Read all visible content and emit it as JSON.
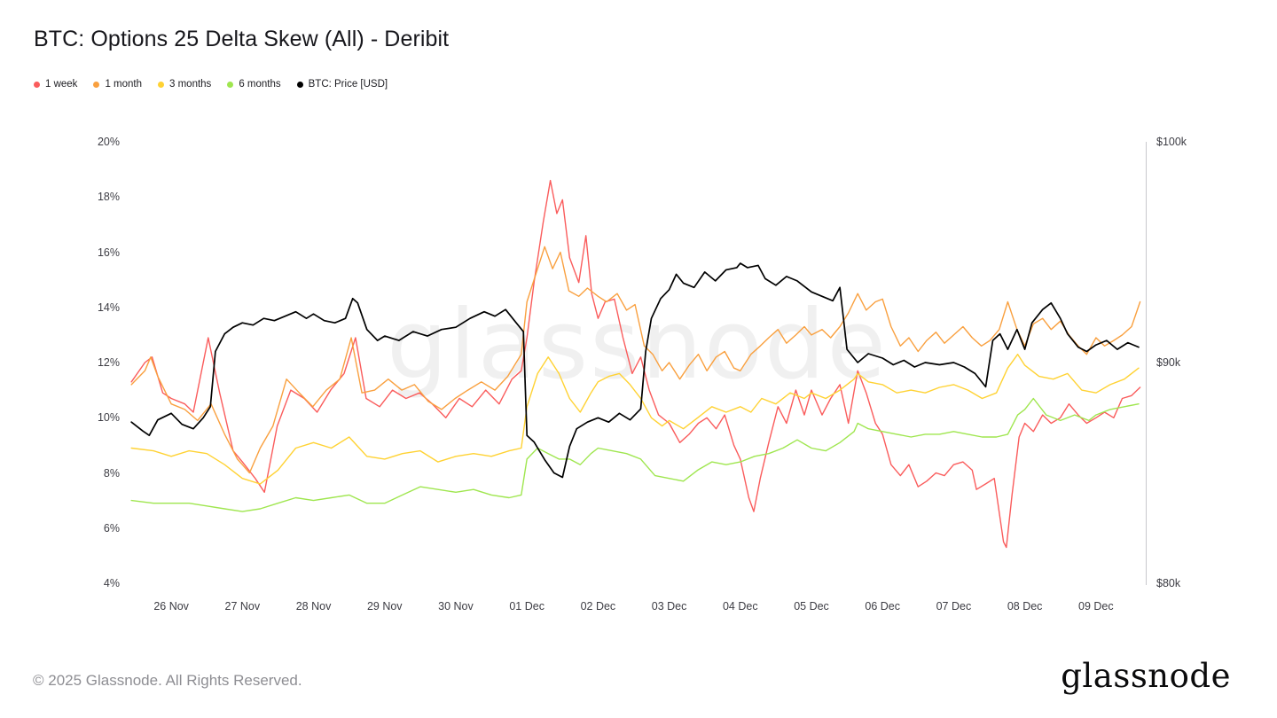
{
  "page": {
    "title": "BTC: Options 25 Delta Skew (All) - Deribit",
    "watermark": "glassnode",
    "footer_copyright": "© 2025 Glassnode. All Rights Reserved.",
    "brand_logo": "glassnode"
  },
  "chart_data": {
    "type": "line",
    "title": "BTC: Options 25 Delta Skew (All) - Deribit",
    "grid": "off",
    "legend_position": "top-left",
    "x_unit": "days (0 = 26 Nov, 13 = 09 Dec)",
    "x_min": -0.6,
    "x_max": 13.7,
    "x_ticks": [
      {
        "pos": 0,
        "label": "26 Nov"
      },
      {
        "pos": 1,
        "label": "27 Nov"
      },
      {
        "pos": 2,
        "label": "28 Nov"
      },
      {
        "pos": 3,
        "label": "29 Nov"
      },
      {
        "pos": 4,
        "label": "30 Nov"
      },
      {
        "pos": 5,
        "label": "01 Dec"
      },
      {
        "pos": 6,
        "label": "02 Dec"
      },
      {
        "pos": 7,
        "label": "03 Dec"
      },
      {
        "pos": 8,
        "label": "04 Dec"
      },
      {
        "pos": 9,
        "label": "05 Dec"
      },
      {
        "pos": 10,
        "label": "06 Dec"
      },
      {
        "pos": 11,
        "label": "07 Dec"
      },
      {
        "pos": 12,
        "label": "08 Dec"
      },
      {
        "pos": 13,
        "label": "09 Dec"
      }
    ],
    "left_axis": {
      "unit": "%",
      "min": 4,
      "max": 20,
      "ticks": [
        {
          "value": 20,
          "label": "20%"
        },
        {
          "value": 18,
          "label": "18%"
        },
        {
          "value": 16,
          "label": "16%"
        },
        {
          "value": 14,
          "label": "14%"
        },
        {
          "value": 12,
          "label": "12%"
        },
        {
          "value": 10,
          "label": "10%"
        },
        {
          "value": 8,
          "label": "8%"
        },
        {
          "value": 6,
          "label": "6%"
        },
        {
          "value": 4,
          "label": "4%"
        }
      ]
    },
    "right_axis": {
      "unit": "USD (thousands)",
      "min": 80,
      "max": 100,
      "ticks": [
        {
          "value": 100,
          "label": "$100k"
        },
        {
          "value": 90,
          "label": "$90k"
        },
        {
          "value": 80,
          "label": "$80k"
        }
      ]
    },
    "series": [
      {
        "id": "1-week",
        "name": "1 week",
        "color": "#fa5c5c",
        "axis": "left",
        "stroke_width": 1.4,
        "x": [
          -0.56,
          -0.37,
          -0.27,
          -0.12,
          0,
          0.19,
          0.31,
          0.52,
          0.68,
          0.87,
          1,
          1.18,
          1.31,
          1.49,
          1.68,
          1.87,
          2.05,
          2.24,
          2.43,
          2.59,
          2.74,
          2.93,
          3.11,
          3.3,
          3.49,
          3.67,
          3.86,
          4.05,
          4.23,
          4.42,
          4.61,
          4.79,
          4.92,
          5,
          5.1,
          5.23,
          5.33,
          5.42,
          5.5,
          5.6,
          5.73,
          5.83,
          5.91,
          6,
          6.1,
          6.23,
          6.35,
          6.48,
          6.6,
          6.72,
          6.85,
          7,
          7.15,
          7.28,
          7.41,
          7.53,
          7.66,
          7.78,
          7.91,
          8,
          8.12,
          8.19,
          8.28,
          8.4,
          8.53,
          8.65,
          8.78,
          8.9,
          9,
          9.15,
          9.27,
          9.4,
          9.52,
          9.65,
          9.77,
          9.9,
          10,
          10.12,
          10.25,
          10.37,
          10.5,
          10.62,
          10.75,
          10.87,
          11,
          11.13,
          11.26,
          11.32,
          11.45,
          11.57,
          11.7,
          11.74,
          11.82,
          11.92,
          12,
          12.12,
          12.25,
          12.37,
          12.5,
          12.62,
          12.75,
          12.87,
          13,
          13.12,
          13.25,
          13.37,
          13.5,
          13.62
        ],
        "y": [
          11.3,
          12,
          12.2,
          10.9,
          10.7,
          10.5,
          10.2,
          12.9,
          10.9,
          8.8,
          8.4,
          7.8,
          7.3,
          9.7,
          11,
          10.7,
          10.2,
          11,
          11.6,
          12.9,
          10.7,
          10.4,
          11,
          10.7,
          10.9,
          10.5,
          10,
          10.7,
          10.4,
          11,
          10.5,
          11.4,
          11.7,
          12.9,
          14.9,
          17.1,
          18.6,
          17.4,
          17.9,
          15.8,
          14.9,
          16.6,
          14.5,
          13.6,
          14.2,
          14.3,
          12.9,
          11.6,
          12.2,
          11,
          10.1,
          9.8,
          9.1,
          9.4,
          9.8,
          10,
          9.6,
          10.1,
          9,
          8.5,
          7.1,
          6.6,
          7.8,
          9.1,
          10.4,
          9.8,
          11,
          10.1,
          11,
          10.1,
          10.7,
          11.2,
          9.8,
          11.7,
          10.9,
          9.8,
          9.4,
          8.3,
          7.9,
          8.3,
          7.5,
          7.7,
          8,
          7.9,
          8.3,
          8.4,
          8.1,
          7.4,
          7.6,
          7.8,
          5.5,
          5.3,
          7.2,
          9.3,
          9.8,
          9.5,
          10.1,
          9.8,
          10,
          10.5,
          10.1,
          9.8,
          10,
          10.2,
          10,
          10.7,
          10.8,
          11.1
        ]
      },
      {
        "id": "1-month",
        "name": "1 month",
        "color": "#f9a03f",
        "axis": "left",
        "stroke_width": 1.4,
        "x": [
          -0.56,
          -0.37,
          -0.29,
          -0.19,
          0,
          0.19,
          0.37,
          0.56,
          0.75,
          0.93,
          1,
          1.1,
          1.25,
          1.43,
          1.62,
          1.8,
          1.99,
          2.18,
          2.37,
          2.53,
          2.68,
          2.86,
          3.05,
          3.24,
          3.42,
          3.61,
          3.8,
          3.99,
          4.17,
          4.36,
          4.55,
          4.73,
          4.92,
          5,
          5.1,
          5.25,
          5.36,
          5.47,
          5.59,
          5.73,
          5.85,
          6,
          6.12,
          6.27,
          6.4,
          6.52,
          6.65,
          6.77,
          6.9,
          7,
          7.15,
          7.28,
          7.41,
          7.53,
          7.66,
          7.78,
          7.91,
          8,
          8.15,
          8.28,
          8.4,
          8.53,
          8.65,
          8.78,
          8.9,
          9,
          9.15,
          9.27,
          9.4,
          9.52,
          9.65,
          9.77,
          9.9,
          10,
          10.12,
          10.25,
          10.37,
          10.5,
          10.62,
          10.75,
          10.87,
          11,
          11.13,
          11.26,
          11.39,
          11.51,
          11.64,
          11.76,
          11.89,
          12,
          12.12,
          12.25,
          12.37,
          12.5,
          12.62,
          12.75,
          12.87,
          13,
          13.12,
          13.25,
          13.37,
          13.5,
          13.62
        ],
        "y": [
          11.2,
          11.7,
          12.2,
          11.5,
          10.5,
          10.3,
          9.9,
          10.5,
          9.4,
          8.5,
          8.3,
          8,
          8.9,
          9.7,
          11.4,
          10.9,
          10.4,
          11,
          11.4,
          12.9,
          10.9,
          11,
          11.4,
          11,
          11.2,
          10.6,
          10.3,
          10.7,
          11,
          11.3,
          11,
          11.5,
          12.3,
          14.2,
          15,
          16.2,
          15.4,
          16,
          14.6,
          14.4,
          14.7,
          14.4,
          14.2,
          14.5,
          13.9,
          14.1,
          12.6,
          12.3,
          11.7,
          12,
          11.4,
          11.9,
          12.3,
          11.7,
          12.2,
          12.4,
          11.8,
          11.7,
          12.3,
          12.6,
          12.9,
          13.2,
          12.7,
          13,
          13.3,
          13,
          13.2,
          12.9,
          13.3,
          13.8,
          14.5,
          13.9,
          14.2,
          14.3,
          13.3,
          12.6,
          12.9,
          12.4,
          12.8,
          13.1,
          12.7,
          13,
          13.3,
          12.9,
          12.6,
          12.8,
          13.2,
          14.2,
          13.2,
          12.6,
          13.4,
          13.6,
          13.2,
          13.5,
          13,
          12.6,
          12.3,
          12.9,
          12.6,
          12.8,
          13,
          13.3,
          14.2
        ]
      },
      {
        "id": "3-months",
        "name": "3 months",
        "color": "#ffd233",
        "axis": "left",
        "stroke_width": 1.4,
        "x": [
          -0.56,
          -0.25,
          0,
          0.25,
          0.5,
          0.75,
          1,
          1.25,
          1.5,
          1.75,
          2,
          2.25,
          2.5,
          2.75,
          3,
          3.25,
          3.5,
          3.75,
          4,
          4.25,
          4.5,
          4.75,
          4.92,
          5,
          5.15,
          5.3,
          5.45,
          5.6,
          5.75,
          5.9,
          6,
          6.15,
          6.3,
          6.45,
          6.6,
          6.75,
          6.9,
          7,
          7.2,
          7.4,
          7.6,
          7.8,
          8,
          8.15,
          8.3,
          8.5,
          8.7,
          8.9,
          9,
          9.2,
          9.4,
          9.6,
          9.65,
          9.8,
          10,
          10.2,
          10.4,
          10.6,
          10.8,
          11,
          11.2,
          11.4,
          11.6,
          11.76,
          11.9,
          12,
          12.2,
          12.4,
          12.6,
          12.8,
          13,
          13.2,
          13.4,
          13.6
        ],
        "y": [
          8.9,
          8.8,
          8.6,
          8.8,
          8.7,
          8.3,
          7.8,
          7.6,
          8.1,
          8.9,
          9.1,
          8.9,
          9.3,
          8.6,
          8.5,
          8.7,
          8.8,
          8.4,
          8.6,
          8.7,
          8.6,
          8.8,
          8.9,
          10.4,
          11.6,
          12.2,
          11.6,
          10.7,
          10.2,
          10.9,
          11.3,
          11.5,
          11.6,
          11.2,
          10.7,
          10,
          9.7,
          9.9,
          9.6,
          10,
          10.4,
          10.2,
          10.4,
          10.2,
          10.7,
          10.5,
          10.9,
          10.7,
          10.9,
          10.7,
          11,
          11.4,
          11.6,
          11.3,
          11.2,
          10.9,
          11,
          10.9,
          11.1,
          11.2,
          11,
          10.7,
          10.9,
          11.8,
          12.3,
          11.9,
          11.5,
          11.4,
          11.6,
          11,
          10.9,
          11.2,
          11.4,
          11.8
        ]
      },
      {
        "id": "6-months",
        "name": "6 months",
        "color": "#9fe64f",
        "axis": "left",
        "stroke_width": 1.4,
        "x": [
          -0.56,
          -0.25,
          0,
          0.25,
          0.5,
          0.75,
          1,
          1.25,
          1.5,
          1.75,
          2,
          2.25,
          2.5,
          2.75,
          3,
          3.25,
          3.5,
          3.75,
          4,
          4.25,
          4.5,
          4.75,
          4.92,
          5,
          5.15,
          5.3,
          5.45,
          5.6,
          5.75,
          5.9,
          6,
          6.2,
          6.4,
          6.6,
          6.8,
          7,
          7.2,
          7.4,
          7.6,
          7.8,
          8,
          8.2,
          8.4,
          8.6,
          8.8,
          9,
          9.2,
          9.4,
          9.6,
          9.65,
          9.8,
          10,
          10.2,
          10.4,
          10.6,
          10.8,
          11,
          11.2,
          11.4,
          11.6,
          11.76,
          11.9,
          12,
          12.12,
          12.3,
          12.5,
          12.7,
          12.9,
          13,
          13.2,
          13.4,
          13.6
        ],
        "y": [
          7,
          6.9,
          6.9,
          6.9,
          6.8,
          6.7,
          6.6,
          6.7,
          6.9,
          7.1,
          7,
          7.1,
          7.2,
          6.9,
          6.9,
          7.2,
          7.5,
          7.4,
          7.3,
          7.4,
          7.2,
          7.1,
          7.2,
          8.5,
          8.9,
          8.7,
          8.5,
          8.5,
          8.3,
          8.7,
          8.9,
          8.8,
          8.7,
          8.5,
          7.9,
          7.8,
          7.7,
          8.1,
          8.4,
          8.3,
          8.4,
          8.6,
          8.7,
          8.9,
          9.2,
          8.9,
          8.8,
          9.1,
          9.5,
          9.8,
          9.6,
          9.5,
          9.4,
          9.3,
          9.4,
          9.4,
          9.5,
          9.4,
          9.3,
          9.3,
          9.4,
          10.1,
          10.3,
          10.7,
          10.1,
          9.9,
          10.1,
          9.9,
          10.1,
          10.3,
          10.4,
          10.5
        ]
      },
      {
        "id": "btc-price-usd",
        "name": "BTC: Price [USD]",
        "color": "#000000",
        "axis": "right",
        "stroke_width": 1.7,
        "x": [
          -0.56,
          -0.4,
          -0.31,
          -0.19,
          0,
          0.15,
          0.31,
          0.45,
          0.55,
          0.62,
          0.75,
          0.87,
          1,
          1.15,
          1.3,
          1.45,
          1.6,
          1.75,
          1.9,
          2,
          2.15,
          2.3,
          2.45,
          2.55,
          2.62,
          2.75,
          2.9,
          3,
          3.2,
          3.4,
          3.6,
          3.8,
          4,
          4.2,
          4.4,
          4.55,
          4.7,
          4.85,
          4.95,
          5,
          5.1,
          5.25,
          5.38,
          5.5,
          5.6,
          5.7,
          5.85,
          6,
          6.15,
          6.3,
          6.45,
          6.6,
          6.67,
          6.75,
          6.88,
          7,
          7.1,
          7.2,
          7.35,
          7.5,
          7.65,
          7.8,
          7.95,
          8,
          8.1,
          8.25,
          8.35,
          8.5,
          8.65,
          8.8,
          9,
          9.15,
          9.3,
          9.4,
          9.5,
          9.65,
          9.8,
          10,
          10.15,
          10.3,
          10.45,
          10.6,
          10.8,
          11,
          11.15,
          11.3,
          11.45,
          11.55,
          11.65,
          11.76,
          11.89,
          12,
          12.1,
          12.25,
          12.37,
          12.5,
          12.6,
          12.75,
          12.87,
          13,
          13.15,
          13.3,
          13.45,
          13.6
        ],
        "y": [
          87.3,
          86.9,
          86.7,
          87.4,
          87.7,
          87.2,
          87,
          87.5,
          88,
          90.5,
          91.3,
          91.6,
          91.8,
          91.7,
          92,
          91.9,
          92.1,
          92.3,
          92,
          92.2,
          91.9,
          91.8,
          92,
          92.9,
          92.7,
          91.5,
          91,
          91.2,
          91,
          91.4,
          91.2,
          91.5,
          91.6,
          92,
          92.3,
          92.1,
          92.4,
          91.8,
          91.4,
          86.7,
          86.4,
          85.6,
          85,
          84.8,
          86.2,
          87,
          87.3,
          87.5,
          87.3,
          87.7,
          87.4,
          87.9,
          90.5,
          92,
          92.9,
          93.3,
          94,
          93.6,
          93.4,
          94.1,
          93.7,
          94.2,
          94.3,
          94.5,
          94.3,
          94.4,
          93.8,
          93.5,
          93.9,
          93.7,
          93.2,
          93,
          92.8,
          93.4,
          90.6,
          90,
          90.4,
          90.2,
          89.9,
          90.1,
          89.8,
          90,
          89.9,
          90,
          89.8,
          89.5,
          88.9,
          91,
          91.3,
          90.6,
          91.5,
          90.6,
          91.8,
          92.4,
          92.7,
          92,
          91.3,
          90.7,
          90.5,
          90.8,
          91,
          90.6,
          90.9,
          90.7
        ]
      }
    ]
  }
}
